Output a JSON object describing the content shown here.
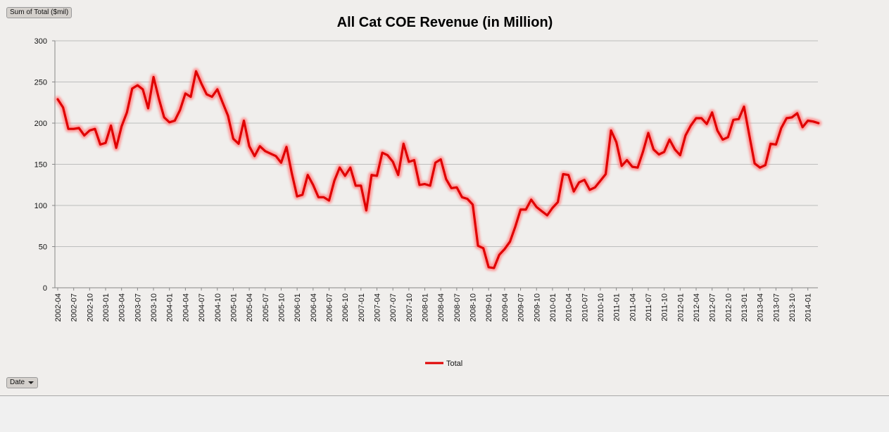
{
  "field_buttons": {
    "values_label": "Sum of Total ($mil)",
    "axis_label": "Date"
  },
  "colors": {
    "series": "#e00000",
    "glow": "#ff8a8a",
    "grid": "#bdbdbd",
    "background": "#f0eeec"
  },
  "chart_data": {
    "type": "line",
    "title": "All Cat COE Revenue (in Million)",
    "xlabel": "",
    "ylabel": "",
    "ylim": [
      0,
      300
    ],
    "yticks": [
      0,
      50,
      100,
      150,
      200,
      250,
      300
    ],
    "grid": true,
    "legend": "bottom-center",
    "tick_labels": [
      "2002-04",
      "2002-07",
      "2002-10",
      "2003-01",
      "2003-04",
      "2003-07",
      "2003-10",
      "2004-01",
      "2004-04",
      "2004-07",
      "2004-10",
      "2005-01",
      "2005-04",
      "2005-07",
      "2005-10",
      "2006-01",
      "2006-04",
      "2006-07",
      "2006-10",
      "2007-01",
      "2007-04",
      "2007-07",
      "2007-10",
      "2008-01",
      "2008-04",
      "2008-07",
      "2008-10",
      "2009-01",
      "2009-04",
      "2009-07",
      "2009-10",
      "2010-01",
      "2010-04",
      "2010-07",
      "2010-10",
      "2011-01",
      "2011-04",
      "2011-07",
      "2011-10",
      "2012-01",
      "2012-04",
      "2012-07",
      "2012-10",
      "2013-01",
      "2013-04",
      "2013-07",
      "2013-10",
      "2014-01"
    ],
    "x_start": "2002-04",
    "series": [
      {
        "name": "Total",
        "values": [
          229,
          219,
          193,
          193,
          194,
          185,
          191,
          193,
          174,
          176,
          197,
          170,
          196,
          213,
          242,
          246,
          241,
          218,
          256,
          230,
          207,
          201,
          203,
          216,
          236,
          232,
          263,
          248,
          235,
          232,
          241,
          225,
          209,
          181,
          175,
          203,
          172,
          160,
          172,
          166,
          163,
          160,
          152,
          171,
          139,
          111,
          113,
          137,
          125,
          110,
          110,
          106,
          130,
          146,
          136,
          146,
          124,
          124,
          94,
          137,
          136,
          164,
          161,
          153,
          137,
          175,
          153,
          155,
          125,
          126,
          124,
          152,
          156,
          132,
          121,
          122,
          110,
          108,
          101,
          51,
          48,
          25,
          24,
          40,
          47,
          56,
          74,
          95,
          95,
          107,
          98,
          93,
          88,
          97,
          104,
          138,
          137,
          117,
          128,
          131,
          119,
          122,
          130,
          138,
          191,
          177,
          148,
          155,
          147,
          146,
          165,
          188,
          168,
          162,
          165,
          180,
          168,
          161,
          185,
          197,
          206,
          206,
          199,
          213,
          191,
          180,
          183,
          204,
          205,
          220,
          185,
          151,
          146,
          149,
          175,
          174,
          194,
          206,
          207,
          212,
          195,
          203,
          202,
          200
        ]
      }
    ]
  }
}
